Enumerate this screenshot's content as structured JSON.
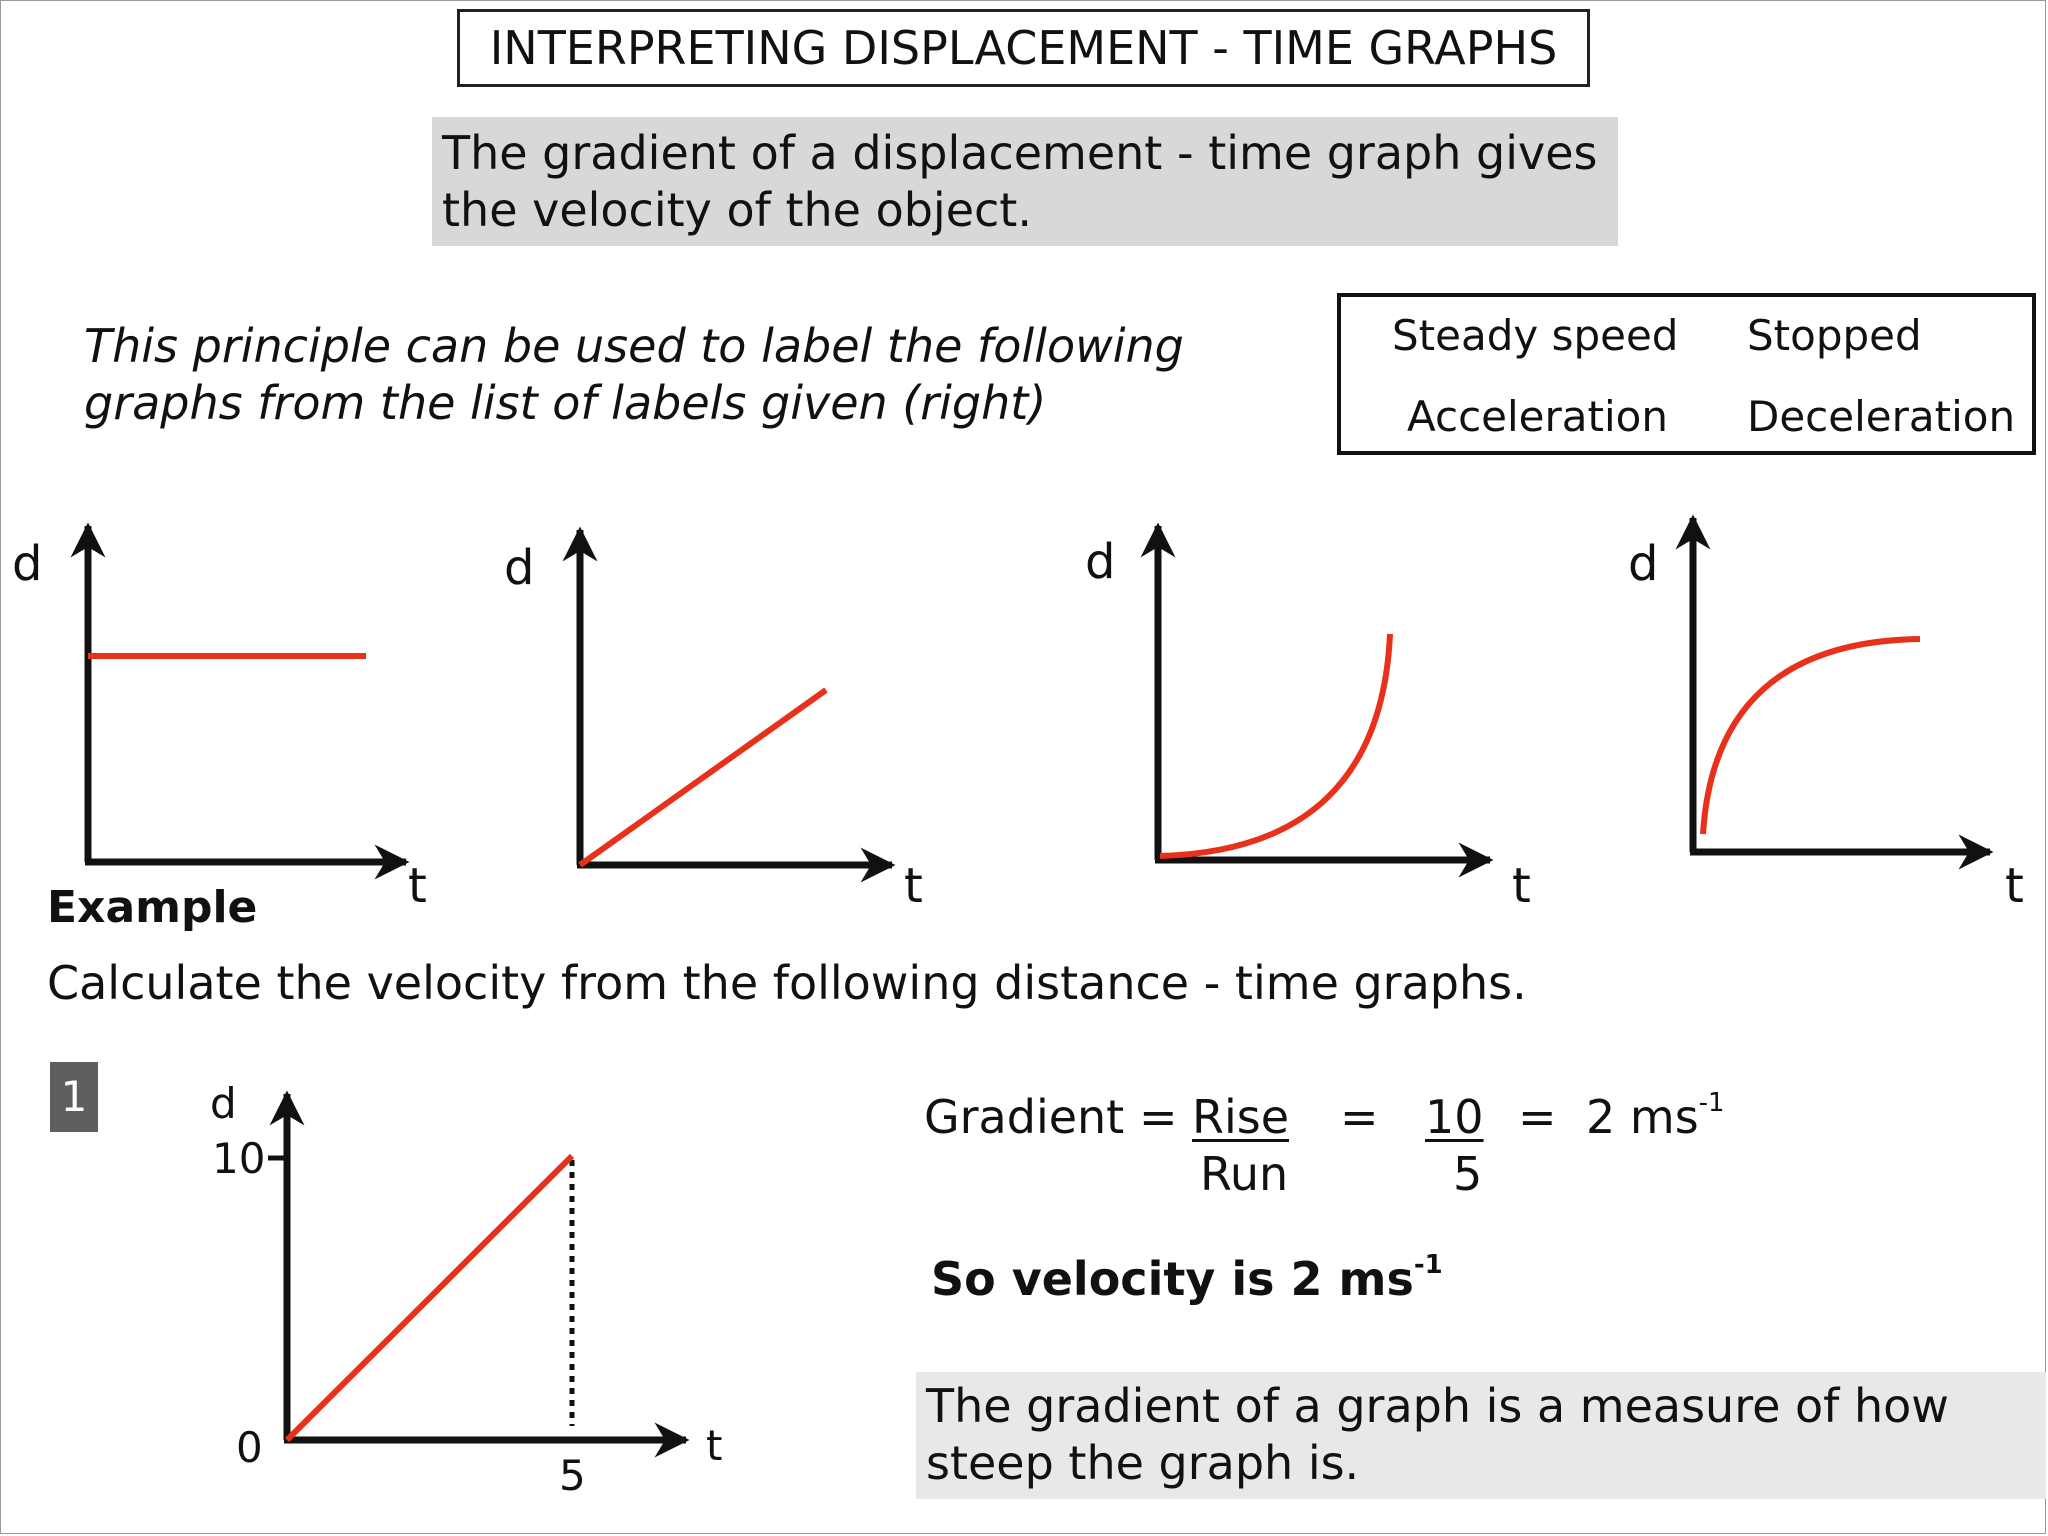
{
  "title": "INTERPRETING DISPLACEMENT - TIME GRAPHS",
  "principle": "The gradient of a displacement - time graph gives the velocity of the object.",
  "intro": "This principle can be used to label the following graphs from the list of labels given (right)",
  "label_options": [
    "Steady speed",
    "Stopped",
    "Acceleration",
    "Deceleration"
  ],
  "graphs": [
    {
      "y_label": "d",
      "x_label": "t",
      "curve": "horizontal line"
    },
    {
      "y_label": "d",
      "x_label": "t",
      "curve": "straight line from origin"
    },
    {
      "y_label": "d",
      "x_label": "t",
      "curve": "curve getting steeper"
    },
    {
      "y_label": "d",
      "x_label": "t",
      "curve": "curve levelling off"
    }
  ],
  "example": {
    "heading": "Example",
    "instruction": "Calculate the velocity from the following distance - time graphs.",
    "question_number": "1",
    "graph": {
      "y_label": "d",
      "x_label": "t",
      "origin_label": "0",
      "y_tick": "10",
      "x_tick": "5"
    },
    "gradient_word": "Gradient",
    "equals": "=",
    "rise": "Rise",
    "run": "Run",
    "rise_value": "10",
    "run_value": "5",
    "result_value": "2 ms",
    "exponent": "-1",
    "velocity_text": "So velocity is 2 ms",
    "velocity_exponent": "-1"
  },
  "note": "The gradient of a graph is a measure of how steep the graph is.",
  "colors": {
    "curve": "#e8311a",
    "axis": "#111111",
    "principle_bg": "#d8d8d8",
    "note_bg": "#e8e7ea",
    "question_badge": "#5f5f5f"
  },
  "chart_data": [
    {
      "type": "line",
      "series": [
        {
          "points": [
            [
              0,
              1
            ],
            [
              1,
              1
            ]
          ]
        }
      ],
      "ylabel": "d",
      "xlabel": "t"
    },
    {
      "type": "line",
      "series": [
        {
          "points": [
            [
              0,
              0
            ],
            [
              1,
              1
            ]
          ]
        }
      ],
      "ylabel": "d",
      "xlabel": "t"
    },
    {
      "type": "line",
      "series": [
        {
          "shape": "convex increasing"
        }
      ],
      "ylabel": "d",
      "xlabel": "t"
    },
    {
      "type": "line",
      "series": [
        {
          "shape": "concave increasing"
        }
      ],
      "ylabel": "d",
      "xlabel": "t"
    },
    {
      "type": "line",
      "x": [
        0,
        5
      ],
      "series": [
        {
          "values": [
            0,
            10
          ]
        }
      ],
      "ylabel": "d",
      "xlabel": "t",
      "xticks": [
        "0",
        "5"
      ],
      "yticks": [
        "0",
        "10"
      ]
    }
  ]
}
